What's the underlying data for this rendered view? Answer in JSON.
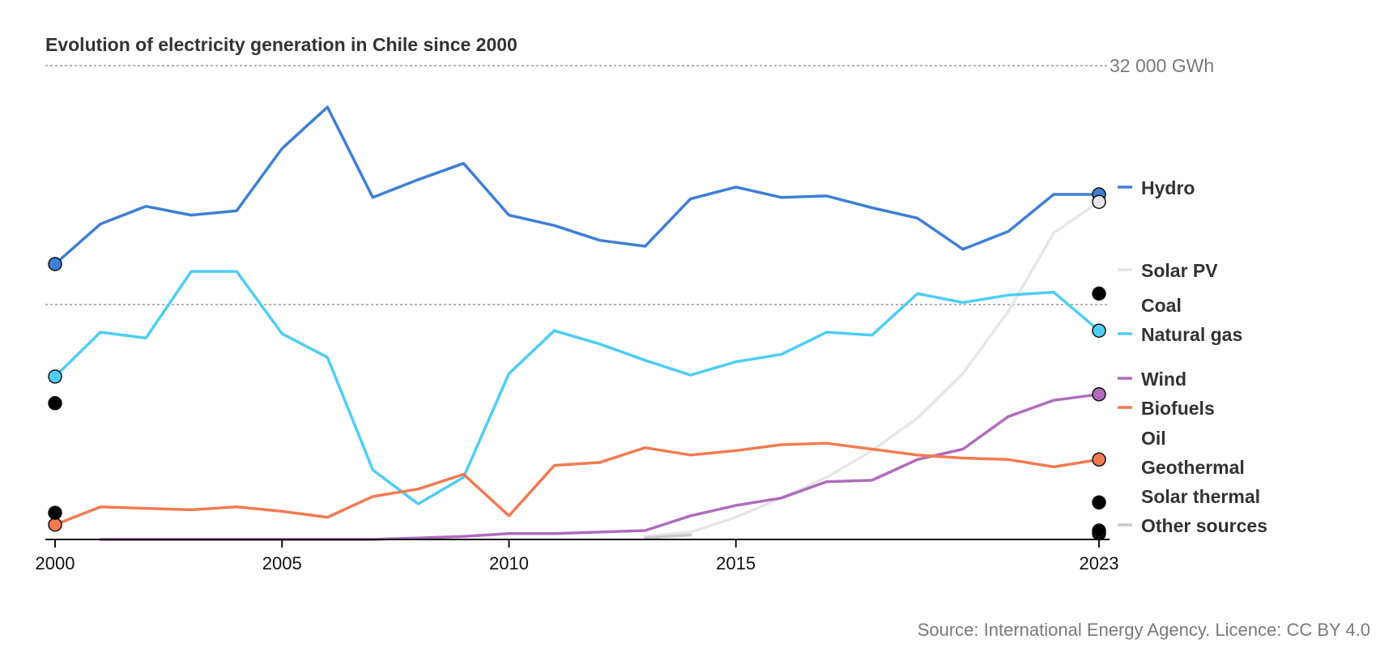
{
  "chart_data": {
    "type": "line",
    "title": "Evolution of electricity generation in Chile since 2000",
    "reference_line": {
      "value": 32000,
      "label": "32 000 GWh"
    },
    "x_ticks": [
      2000,
      2005,
      2010,
      2015,
      2023
    ],
    "x": [
      2000,
      2001,
      2002,
      2003,
      2004,
      2005,
      2006,
      2007,
      2008,
      2009,
      2010,
      2011,
      2012,
      2013,
      2014,
      2015,
      2016,
      2017,
      2018,
      2019,
      2020,
      2021,
      2022,
      2023
    ],
    "ylim": [
      0,
      48000
    ],
    "grid": false,
    "legend_placement": "right",
    "series": [
      {
        "name": "Hydro",
        "color": "#3f7fd6",
        "values": [
          18600,
          21300,
          22500,
          21900,
          22200,
          26400,
          29200,
          23100,
          24300,
          25400,
          21900,
          21200,
          20200,
          19800,
          23000,
          23800,
          23100,
          23200,
          22400,
          21700,
          19600,
          20800,
          23300,
          23300
        ]
      },
      {
        "name": "Solar PV",
        "color": "#e6e6e6",
        "values": [
          null,
          null,
          null,
          null,
          null,
          null,
          null,
          null,
          null,
          null,
          null,
          null,
          null,
          200,
          500,
          1500,
          2800,
          4200,
          6000,
          8200,
          11200,
          15400,
          20700,
          22800
        ]
      },
      {
        "name": "Coal",
        "color": "#000000",
        "values": [
          9200,
          null,
          null,
          null,
          null,
          null,
          null,
          null,
          null,
          null,
          null,
          null,
          null,
          null,
          null,
          null,
          null,
          null,
          null,
          null,
          null,
          null,
          null,
          16600
        ]
      },
      {
        "name": "Natural gas",
        "color": "#4fcdf7",
        "values": [
          11000,
          14000,
          13600,
          18100,
          18100,
          13900,
          12300,
          4700,
          2400,
          4200,
          11200,
          14100,
          13200,
          12100,
          11100,
          12000,
          12500,
          14000,
          13800,
          16600,
          16000,
          16500,
          16700,
          14100
        ]
      },
      {
        "name": "Wind",
        "color": "#b06bbd",
        "values": [
          null,
          0,
          0,
          0,
          0,
          0,
          0,
          0,
          100,
          200,
          400,
          400,
          500,
          600,
          1600,
          2300,
          2800,
          3900,
          4000,
          5400,
          6100,
          8300,
          9400,
          9800
        ]
      },
      {
        "name": "Biofuels",
        "color": "#f47a52",
        "values": [
          1000,
          2200,
          2100,
          2000,
          2200,
          1900,
          1500,
          2900,
          3400,
          4400,
          1600,
          5000,
          5200,
          6200,
          5700,
          6000,
          6400,
          6500,
          6100,
          5700,
          5500,
          5400,
          4900,
          5400
        ]
      },
      {
        "name": "Oil",
        "color": "#000000",
        "values": [
          1800,
          null,
          null,
          null,
          null,
          null,
          null,
          null,
          null,
          null,
          null,
          null,
          null,
          null,
          null,
          null,
          null,
          null,
          null,
          null,
          null,
          null,
          null,
          2500
        ]
      },
      {
        "name": "Geothermal",
        "color": "#000000",
        "values": [
          null,
          null,
          null,
          null,
          null,
          null,
          null,
          null,
          null,
          null,
          null,
          null,
          null,
          null,
          null,
          null,
          null,
          null,
          null,
          null,
          null,
          null,
          null,
          400
        ]
      },
      {
        "name": "Solar thermal",
        "color": "#000000",
        "values": [
          null,
          null,
          null,
          null,
          null,
          null,
          null,
          null,
          null,
          null,
          null,
          null,
          null,
          null,
          null,
          null,
          null,
          null,
          null,
          null,
          null,
          null,
          null,
          600
        ]
      },
      {
        "name": "Other sources",
        "color": "#c8c8c8",
        "values": [
          null,
          null,
          null,
          null,
          null,
          null,
          null,
          null,
          null,
          null,
          null,
          null,
          null,
          100,
          300,
          null,
          null,
          null,
          null,
          null,
          null,
          null,
          null,
          null
        ]
      }
    ],
    "legend": [
      "Hydro",
      "Solar PV",
      "Coal",
      "Natural gas",
      "Wind",
      "Biofuels",
      "Oil",
      "Geothermal",
      "Solar thermal",
      "Other sources"
    ],
    "source": "Source: International Energy Agency. Licence: CC BY 4.0"
  }
}
